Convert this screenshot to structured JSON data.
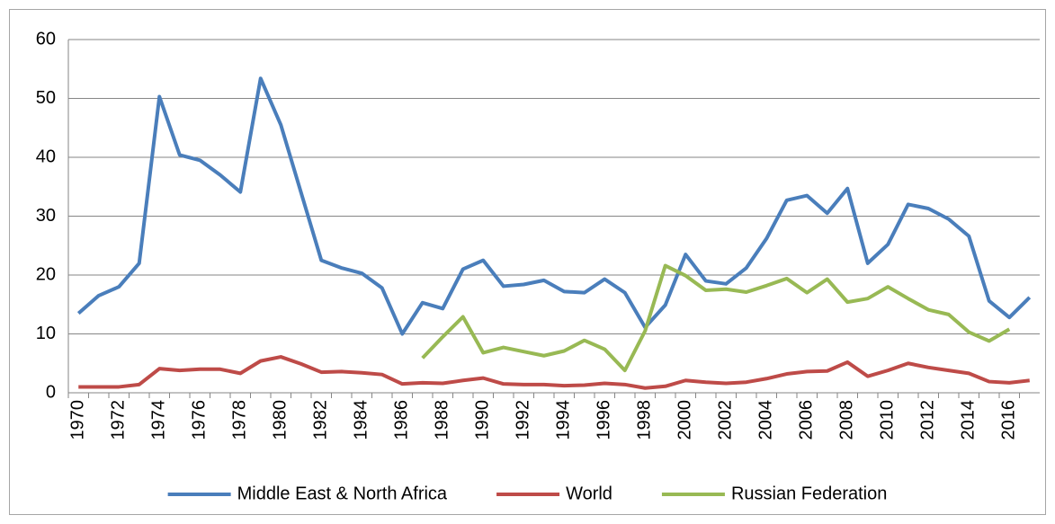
{
  "chart_data": {
    "type": "line",
    "categories": [
      "1970",
      null,
      "1972",
      null,
      "1974",
      null,
      "1976",
      null,
      "1978",
      null,
      "1980",
      null,
      "1982",
      null,
      "1984",
      null,
      "1986",
      null,
      "1988",
      null,
      "1990",
      null,
      "1992",
      null,
      "1994",
      null,
      "1996",
      null,
      "1998",
      null,
      "2000",
      null,
      "2002",
      null,
      "2004",
      null,
      "2006",
      null,
      "2008",
      null,
      "2010",
      null,
      "2012",
      null,
      "2014",
      null,
      "2016",
      null
    ],
    "series": [
      {
        "name": "Middle East & North Africa",
        "color": "#4a7ebb",
        "values": [
          13.5,
          16.5,
          18,
          22,
          50.3,
          40.4,
          39.5,
          37,
          34.1,
          53.4,
          45.5,
          34,
          22.5,
          21.2,
          20.3,
          17.8,
          10,
          15.3,
          14.3,
          21,
          22.5,
          18.1,
          18.4,
          19.1,
          17.2,
          17,
          19.3,
          17,
          11.1,
          14.9,
          23.5,
          19,
          18.5,
          21.2,
          26.2,
          32.7,
          33.5,
          30.5,
          34.7,
          22,
          25.2,
          32,
          31.3,
          29.5,
          26.6,
          15.6,
          12.8,
          16.2
        ]
      },
      {
        "name": "World",
        "color": "#be4b48",
        "values": [
          1.0,
          1.0,
          1.0,
          1.4,
          4.1,
          3.8,
          4.0,
          4.0,
          3.3,
          5.4,
          6.1,
          4.9,
          3.5,
          3.6,
          3.4,
          3.1,
          1.5,
          1.7,
          1.6,
          2.1,
          2.5,
          1.5,
          1.4,
          1.4,
          1.2,
          1.3,
          1.6,
          1.4,
          0.8,
          1.1,
          2.1,
          1.8,
          1.6,
          1.8,
          2.4,
          3.2,
          3.6,
          3.7,
          5.2,
          2.8,
          3.8,
          5.0,
          4.3,
          3.8,
          3.3,
          1.9,
          1.7,
          2.1
        ]
      },
      {
        "name": "Russian Federation",
        "color": "#98b954",
        "values": [
          null,
          null,
          null,
          null,
          null,
          null,
          null,
          null,
          null,
          null,
          null,
          null,
          null,
          null,
          null,
          null,
          null,
          5.9,
          9.5,
          12.9,
          6.8,
          7.7,
          7.0,
          6.3,
          7.1,
          8.9,
          7.4,
          3.8,
          10.5,
          21.6,
          19.9,
          17.4,
          17.6,
          17.1,
          18.2,
          19.4,
          17.0,
          19.3,
          15.4,
          16.0,
          18.0,
          16.0,
          14.1,
          13.3,
          10.3,
          8.8,
          10.8,
          null
        ]
      }
    ],
    "ylim": [
      0,
      60
    ],
    "yticks": [
      0,
      10,
      20,
      30,
      40,
      50,
      60
    ],
    "grid": true,
    "legend": "bottom"
  }
}
